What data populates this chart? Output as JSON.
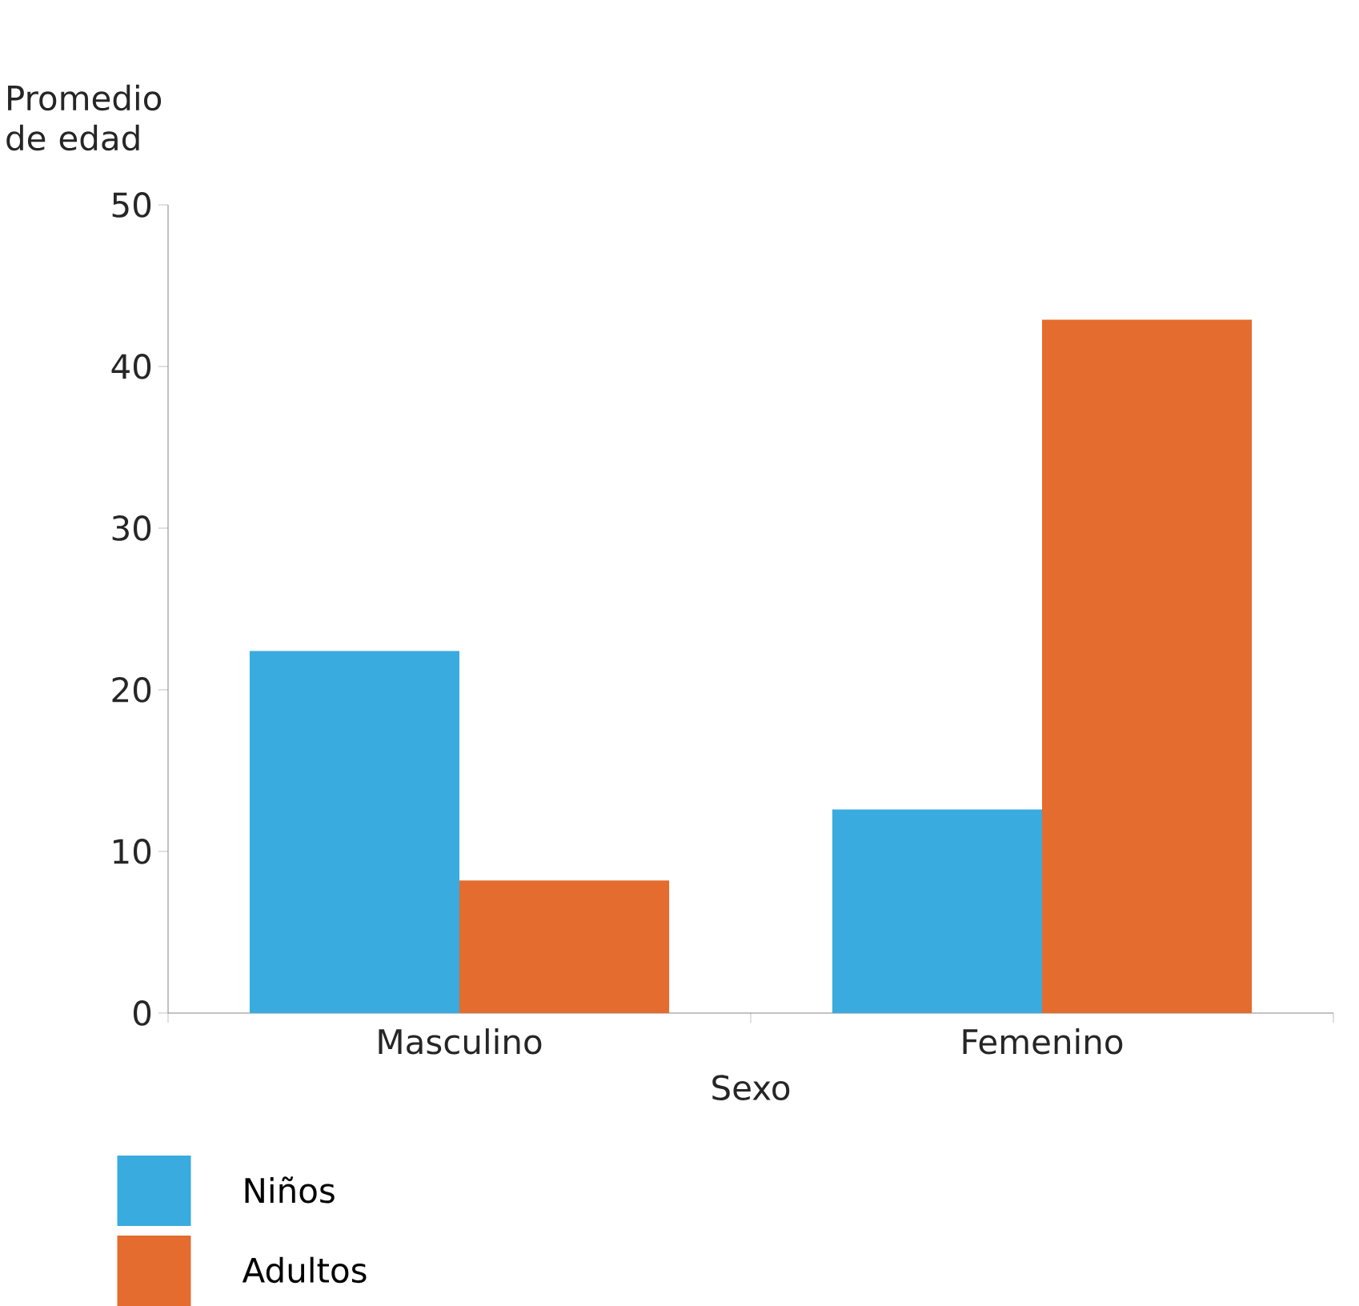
{
  "chart_data": {
    "type": "bar",
    "ylabel": "Promedio de edad",
    "xlabel": "Sexo",
    "categories": [
      "Masculino",
      "Femenino"
    ],
    "series": [
      {
        "name": "Niños",
        "color": "#3aabdf",
        "values": [
          22.4,
          12.6
        ]
      },
      {
        "name": "Adultos",
        "color": "#e36c2e",
        "values": [
          8.2,
          42.9
        ]
      }
    ],
    "ylim": [
      0,
      50
    ],
    "yticks": [
      0,
      10,
      20,
      30,
      40,
      50
    ],
    "legend": "bottom left",
    "grid": false
  }
}
